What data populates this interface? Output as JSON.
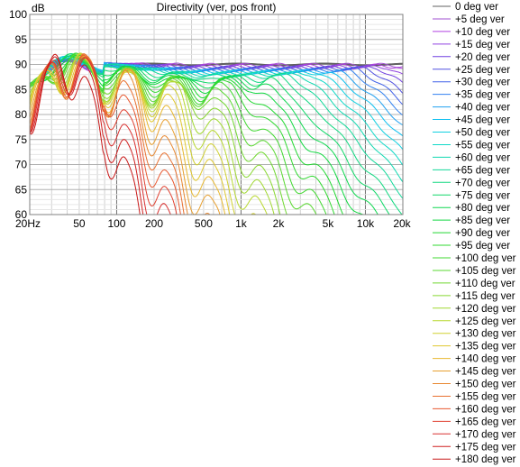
{
  "chart_data": {
    "type": "line",
    "title": "Directivity (ver, pos front)",
    "ylabel": "dB",
    "xlabel": "",
    "x_scale": "log",
    "xlim": [
      20,
      20000
    ],
    "ylim": [
      60,
      100
    ],
    "x_ticks": [
      {
        "value": 20,
        "label": "20Hz"
      },
      {
        "value": 50,
        "label": "50"
      },
      {
        "value": 100,
        "label": "100"
      },
      {
        "value": 200,
        "label": "200"
      },
      {
        "value": 500,
        "label": "500"
      },
      {
        "value": 1000,
        "label": "1k"
      },
      {
        "value": 2000,
        "label": "2k"
      },
      {
        "value": 5000,
        "label": "5k"
      },
      {
        "value": 10000,
        "label": "10k"
      },
      {
        "value": 20000,
        "label": "20k"
      }
    ],
    "y_ticks": [
      60,
      65,
      70,
      75,
      80,
      85,
      90,
      95,
      100
    ],
    "y_tick_labels": [
      "60",
      "65",
      "70",
      "75",
      "80",
      "85",
      "90",
      "95",
      "100"
    ],
    "grid": true,
    "legend_position": "right",
    "series": [
      {
        "name": "0 deg ver",
        "color": "#606060"
      },
      {
        "name": "+5 deg ver",
        "color": "#a050d0"
      },
      {
        "name": "+10 deg ver",
        "color": "#b040e0"
      },
      {
        "name": "+15 deg ver",
        "color": "#9040e0"
      },
      {
        "name": "+20 deg ver",
        "color": "#7040e0"
      },
      {
        "name": "+25 deg ver",
        "color": "#5050e0"
      },
      {
        "name": "+30 deg ver",
        "color": "#4060e8"
      },
      {
        "name": "+35 deg ver",
        "color": "#3080f0"
      },
      {
        "name": "+40 deg ver",
        "color": "#20a0f0"
      },
      {
        "name": "+45 deg ver",
        "color": "#10c0f0"
      },
      {
        "name": "+50 deg ver",
        "color": "#10d0e0"
      },
      {
        "name": "+55 deg ver",
        "color": "#10d8c8"
      },
      {
        "name": "+60 deg ver",
        "color": "#10d8b0"
      },
      {
        "name": "+65 deg ver",
        "color": "#10d898"
      },
      {
        "name": "+70 deg ver",
        "color": "#10d880"
      },
      {
        "name": "+75 deg ver",
        "color": "#10d868"
      },
      {
        "name": "+80 deg ver",
        "color": "#10d850"
      },
      {
        "name": "+85 deg ver",
        "color": "#10d840"
      },
      {
        "name": "+90 deg ver",
        "color": "#20d830"
      },
      {
        "name": "+95 deg ver",
        "color": "#30d830"
      },
      {
        "name": "+100 deg ver",
        "color": "#40d830"
      },
      {
        "name": "+105 deg ver",
        "color": "#58d830"
      },
      {
        "name": "+110 deg ver",
        "color": "#70d830"
      },
      {
        "name": "+115 deg ver",
        "color": "#88d830"
      },
      {
        "name": "+120 deg ver",
        "color": "#a0d830"
      },
      {
        "name": "+125 deg ver",
        "color": "#b8d830"
      },
      {
        "name": "+130 deg ver",
        "color": "#d0d030"
      },
      {
        "name": "+135 deg ver",
        "color": "#e0c830"
      },
      {
        "name": "+140 deg ver",
        "color": "#e8b830"
      },
      {
        "name": "+145 deg ver",
        "color": "#e8a030"
      },
      {
        "name": "+150 deg ver",
        "color": "#e88830"
      },
      {
        "name": "+155 deg ver",
        "color": "#e87030"
      },
      {
        "name": "+160 deg ver",
        "color": "#e85830"
      },
      {
        "name": "+165 deg ver",
        "color": "#e04030"
      },
      {
        "name": "+170 deg ver",
        "color": "#d83030"
      },
      {
        "name": "+175 deg ver",
        "color": "#d02020"
      },
      {
        "name": "+180 deg ver",
        "color": "#c81818"
      }
    ]
  }
}
